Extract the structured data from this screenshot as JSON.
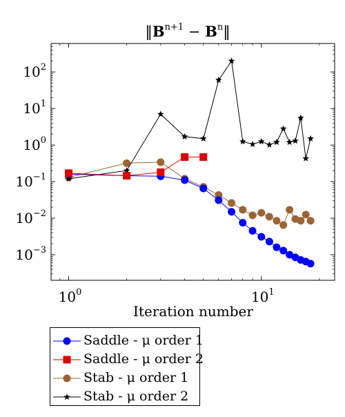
{
  "chart_data": {
    "type": "line",
    "title": "‖B^{n+1} − B^{n}‖",
    "title_parts": {
      "open": "‖",
      "base1": "B",
      "sup1": "n+1",
      "minus": " − ",
      "base2": "B",
      "sup2": "n",
      "close": "‖"
    },
    "xlabel": "Iteration number",
    "ylabel": "",
    "xscale": "log",
    "yscale": "log",
    "xlim": [
      0.81,
      24
    ],
    "ylim": [
      0.0002,
      600
    ],
    "x_ticks": [
      {
        "value": 1,
        "base": "10",
        "exp": "0"
      },
      {
        "value": 10,
        "base": "10",
        "exp": "1"
      }
    ],
    "y_ticks": [
      {
        "value": 0.001,
        "base": "10",
        "exp": "−3"
      },
      {
        "value": 0.01,
        "base": "10",
        "exp": "−2"
      },
      {
        "value": 0.1,
        "label": "10^{-1}",
        "text": "0.1",
        "base": "10",
        "exp": "−1"
      },
      {
        "value": 1,
        "text": "1.0",
        "base": "10",
        "exp": "0"
      },
      {
        "value": 10,
        "base": "10",
        "exp": "1"
      },
      {
        "value": 100,
        "base": "10",
        "exp": "2"
      }
    ],
    "grid": false,
    "legend_position": "below-left",
    "series": [
      {
        "name": "Saddle - μ order 1",
        "color": "#0000ff",
        "marker": "circle",
        "x": [
          1,
          2,
          3,
          4,
          5,
          6,
          7,
          8,
          9,
          10,
          11,
          12,
          13,
          14,
          15,
          16,
          17,
          18
        ],
        "y": [
          0.16,
          0.145,
          0.14,
          0.11,
          0.065,
          0.031,
          0.015,
          0.0075,
          0.0045,
          0.0031,
          0.0023,
          0.0016,
          0.0013,
          0.001,
          0.00085,
          0.00072,
          0.00065,
          0.00057
        ]
      },
      {
        "name": "Saddle - μ order 2",
        "color": "#e00000",
        "marker": "square",
        "x": [
          1,
          2,
          3,
          4,
          5
        ],
        "y": [
          0.17,
          0.145,
          0.18,
          0.47,
          0.47
        ]
      },
      {
        "name": "Stab - μ order 1",
        "color": "#9c6434",
        "marker": "circle",
        "x": [
          1,
          2,
          3,
          4,
          5,
          6,
          7,
          8,
          9,
          10,
          11,
          12,
          13,
          14,
          15,
          16,
          17,
          18
        ],
        "y": [
          0.13,
          0.32,
          0.34,
          0.12,
          0.072,
          0.043,
          0.026,
          0.017,
          0.012,
          0.014,
          0.011,
          0.0085,
          0.0065,
          0.017,
          0.0095,
          0.0085,
          0.0125,
          0.0085
        ]
      },
      {
        "name": "Stab - μ order 2",
        "color": "#000000",
        "marker": "star",
        "x": [
          1,
          2,
          3,
          4,
          5,
          6,
          7,
          8,
          9,
          10,
          11,
          12,
          13,
          14,
          15,
          16,
          17,
          18
        ],
        "y": [
          0.12,
          0.2,
          7.0,
          1.7,
          1.5,
          60,
          200,
          1.25,
          1.05,
          1.25,
          1.02,
          1.2,
          2.8,
          1.2,
          1.3,
          5.5,
          0.43,
          1.5
        ]
      }
    ]
  }
}
